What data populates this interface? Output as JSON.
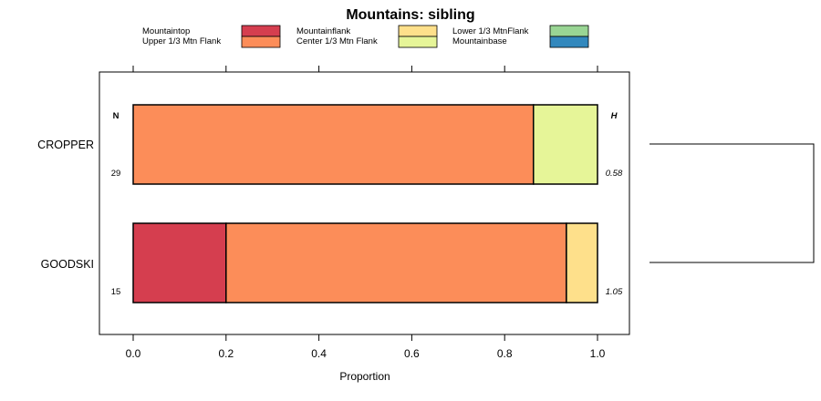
{
  "chart_data": {
    "type": "bar",
    "orientation": "horizontal",
    "stacked": true,
    "title": "Mountains: sibling",
    "xlabel": "Proportion",
    "ylabel": "",
    "xlim": [
      0,
      1
    ],
    "x_ticks": [
      "0.0",
      "0.2",
      "0.4",
      "0.6",
      "0.8",
      "1.0"
    ],
    "x_tick_values": [
      0,
      0.2,
      0.4,
      0.6,
      0.8,
      1.0
    ],
    "n_header": "N",
    "h_header": "H",
    "categories": [
      {
        "name": "CROPPER",
        "n": "29",
        "h": "0.58"
      },
      {
        "name": "GOODSKI",
        "n": "15",
        "h": "1.05"
      }
    ],
    "series": [
      {
        "name": "Mountaintop",
        "color": "#d53e4f",
        "values": [
          0.0,
          0.2
        ]
      },
      {
        "name": "Upper 1/3 Mtn Flank",
        "color": "#fc8d59",
        "values": [
          0.862,
          0.733
        ]
      },
      {
        "name": "Mountainflank",
        "color": "#fee08b",
        "values": [
          0.0,
          0.067
        ]
      },
      {
        "name": "Center 1/3 Mtn Flank",
        "color": "#e6f598",
        "values": [
          0.138,
          0.0
        ]
      },
      {
        "name": "Lower 1/3 MtnFlank",
        "color": "#99d594",
        "values": [
          0.0,
          0.0
        ]
      },
      {
        "name": "Mountainbase",
        "color": "#3288bd",
        "values": [
          0.0,
          0.0
        ]
      }
    ],
    "dendrogram": "two leaves (CROPPER, GOODSKI) joined at right"
  }
}
